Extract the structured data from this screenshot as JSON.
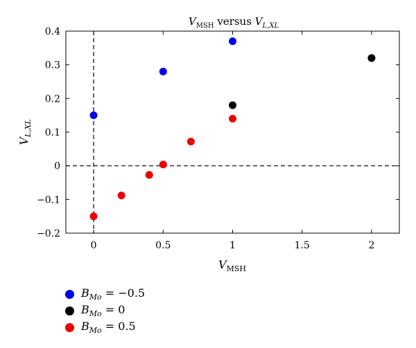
{
  "chart_data": {
    "type": "scatter",
    "title": "V_MSH versus V_L,XL",
    "title_parts": {
      "a": "V",
      "a_sub": "MSH",
      "mid": " versus ",
      "b": "V",
      "b_sub": "L,XL"
    },
    "xlabel": "V_MSH",
    "xlabel_parts": {
      "main": "V",
      "sub": "MSH"
    },
    "ylabel": "V_L,XL",
    "ylabel_parts": {
      "main": "V",
      "sub": "L,XL"
    },
    "xlim": [
      -0.2,
      2.2
    ],
    "ylim": [
      -0.2,
      0.4
    ],
    "xticks": [
      0,
      0.5,
      1,
      1.5,
      2
    ],
    "xtick_labels": [
      "0",
      "0.5",
      "1",
      "1.5",
      "2"
    ],
    "yticks": [
      -0.2,
      -0.1,
      0,
      0.1,
      0.2,
      0.3,
      0.4
    ],
    "ytick_labels": [
      "−0.2",
      "−0.1",
      "0",
      "0.1",
      "0.2",
      "0.3",
      "0.4"
    ],
    "reference_lines": {
      "x": 0,
      "y": 0,
      "style": "dashed"
    },
    "grid": false,
    "legend_position": "below",
    "series": [
      {
        "name": "B_Mo = −0.5",
        "label": "B",
        "label_sub": "Mo",
        "label_rest": " = −0.5",
        "color": "#0000ee",
        "x": [
          0,
          0.5,
          1
        ],
        "y": [
          0.15,
          0.28,
          0.37
        ]
      },
      {
        "name": "B_Mo = 0",
        "label": "B",
        "label_sub": "Mo",
        "label_rest": " = 0",
        "color": "#000000",
        "x": [
          1,
          2
        ],
        "y": [
          0.18,
          0.32
        ]
      },
      {
        "name": "B_Mo = 0.5",
        "label": "B",
        "label_sub": "Mo",
        "label_rest": " = 0.5",
        "color": "#ee0000",
        "x": [
          0,
          0.2,
          0.4,
          0.5,
          0.7,
          1
        ],
        "y": [
          -0.15,
          -0.088,
          -0.027,
          0.004,
          0.072,
          0.14
        ]
      }
    ]
  }
}
